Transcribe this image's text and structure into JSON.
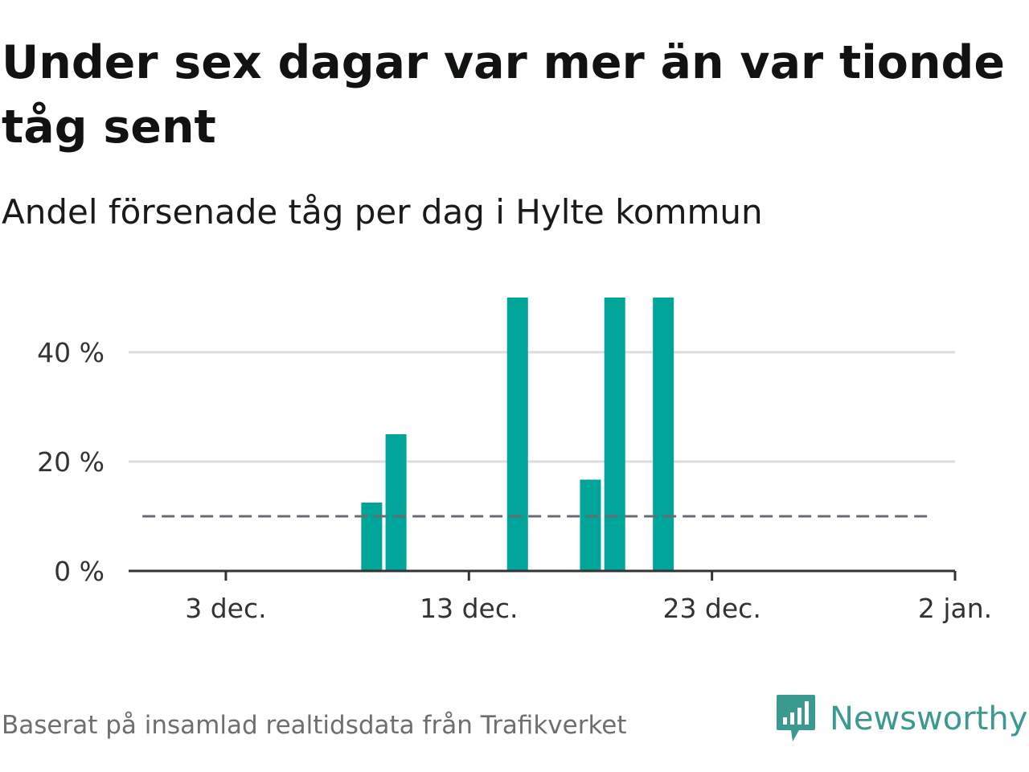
{
  "header": {
    "title": "Under sex dagar var mer än var tionde tåg sent",
    "subtitle": "Andel försenade tåg per dag i Hylte kommun"
  },
  "footer": {
    "source": "Baserat på insamlad realtidsdata från Trafikverket",
    "brand": "Newsworthy",
    "logo_icon": "newsworthy-chart-bubble-icon"
  },
  "colors": {
    "bar": "#00a59a",
    "reference_line": "#6b6b73",
    "gridline": "#dddddd",
    "axis": "#333333",
    "brand": "#3a9a8f"
  },
  "chart_data": {
    "type": "bar",
    "x_type": "date",
    "x": [
      "2023-12-09",
      "2023-12-10",
      "2023-12-15",
      "2023-12-18",
      "2023-12-19",
      "2023-12-21"
    ],
    "values": [
      12.5,
      25,
      50,
      16.7,
      50,
      50
    ],
    "xlim": [
      "2023-11-29",
      "2024-01-02"
    ],
    "ylim": [
      0,
      50
    ],
    "x_ticks": [
      {
        "date": "2023-12-03",
        "label": "3 dec."
      },
      {
        "date": "2023-12-13",
        "label": "13 dec."
      },
      {
        "date": "2023-12-23",
        "label": "23 dec."
      },
      {
        "date": "2024-01-02",
        "label": "2 jan."
      }
    ],
    "y_ticks": [
      {
        "value": 0,
        "label": "0 %"
      },
      {
        "value": 20,
        "label": "20 %"
      },
      {
        "value": 40,
        "label": "40 %"
      }
    ],
    "reference_line": {
      "value": 10,
      "style": "dashed",
      "from": "2023-11-30",
      "to": "2024-01-01"
    },
    "grid": true,
    "legend": "none"
  }
}
